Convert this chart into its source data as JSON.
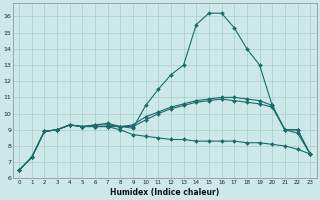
{
  "xlabel": "Humidex (Indice chaleur)",
  "background_color": "#cce8e8",
  "grid_color": "#aacccc",
  "line_color": "#1a6b6b",
  "xlim": [
    -0.5,
    23.5
  ],
  "ylim": [
    6,
    16.8
  ],
  "xtick_labels": [
    "0",
    "1",
    "2",
    "3",
    "4",
    "5",
    "6",
    "7",
    "8",
    "9",
    "10",
    "11",
    "12",
    "13",
    "14",
    "15",
    "16",
    "17",
    "18",
    "19",
    "20",
    "21",
    "22",
    "23"
  ],
  "ytick_labels": [
    "6",
    "7",
    "8",
    "9",
    "10",
    "11",
    "12",
    "13",
    "14",
    "15",
    "16"
  ],
  "ytick_vals": [
    6,
    7,
    8,
    9,
    10,
    11,
    12,
    13,
    14,
    15,
    16
  ],
  "series": [
    [
      6.5,
      7.3,
      8.9,
      9.0,
      9.3,
      9.2,
      9.2,
      9.2,
      9.2,
      9.1,
      10.5,
      11.5,
      12.4,
      13.0,
      15.5,
      16.2,
      16.2,
      15.3,
      14.0,
      13.0,
      10.5,
      9.0,
      9.0,
      7.5
    ],
    [
      6.5,
      7.3,
      8.9,
      9.0,
      9.3,
      9.2,
      9.3,
      9.3,
      9.2,
      9.3,
      9.8,
      10.1,
      10.4,
      10.6,
      10.8,
      10.9,
      11.0,
      11.0,
      10.9,
      10.8,
      10.5,
      9.0,
      9.0,
      7.5
    ],
    [
      6.5,
      7.3,
      8.9,
      9.0,
      9.3,
      9.2,
      9.2,
      9.2,
      9.0,
      8.7,
      8.6,
      8.5,
      8.4,
      8.4,
      8.3,
      8.3,
      8.3,
      8.3,
      8.2,
      8.2,
      8.1,
      8.0,
      7.8,
      7.5
    ],
    [
      6.5,
      7.3,
      8.9,
      9.0,
      9.3,
      9.2,
      9.3,
      9.4,
      9.2,
      9.2,
      9.6,
      10.0,
      10.3,
      10.5,
      10.7,
      10.8,
      10.9,
      10.8,
      10.7,
      10.6,
      10.4,
      9.0,
      8.8,
      7.5
    ]
  ]
}
